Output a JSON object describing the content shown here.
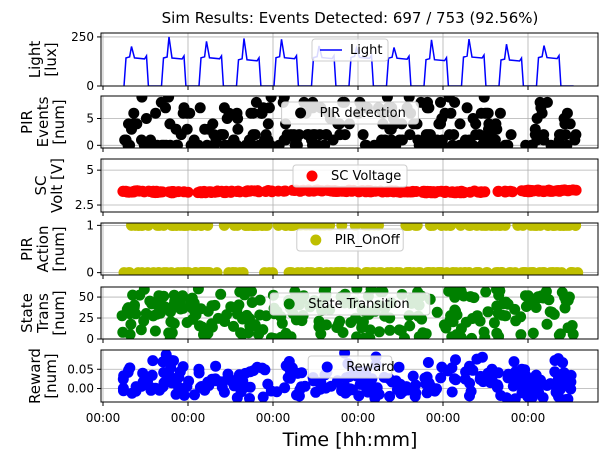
{
  "title": "Sim Results: Events Detected: 697 / 753 (92.56%)",
  "xlabel": "Time [hh:mm]",
  "x_tick_labels": [
    "00:00",
    "00:00",
    "00:00",
    "00:00",
    "00:00",
    "00:00"
  ],
  "chart_data": [
    {
      "type": "line",
      "ylabel": [
        "Light",
        "[lux]"
      ],
      "ylim": [
        0,
        270
      ],
      "yticks": [
        0,
        250
      ],
      "grid": true,
      "legend": {
        "position": "top-center",
        "label": "Light"
      },
      "color": "#0000ff",
      "marker": "none",
      "days": 12,
      "description_values": {
        "night": 0,
        "day_plateau": [
          130,
          150
        ],
        "daily_peak": [
          180,
          250
        ]
      }
    },
    {
      "type": "scatter",
      "ylabel": [
        "PIR",
        "Events",
        "[num]"
      ],
      "ylim": [
        -0.5,
        9.2
      ],
      "yticks": [
        0,
        5
      ],
      "grid": true,
      "legend": {
        "position": "top-center",
        "label": "PIR detection"
      },
      "color": "#000000",
      "value_range": [
        0,
        9
      ]
    },
    {
      "type": "scatter",
      "ylabel": [
        "SC",
        "Volt [V]"
      ],
      "ylim": [
        2.0,
        5.8
      ],
      "yticks": [
        2.5,
        5.0
      ],
      "grid": true,
      "legend": {
        "position": "top-center",
        "label": "SC Voltage"
      },
      "color": "#ff0000",
      "value_range": [
        3.3,
        3.6
      ]
    },
    {
      "type": "scatter",
      "ylabel": [
        "PIR",
        "Action",
        "[num]"
      ],
      "ylim": [
        -0.05,
        1.05
      ],
      "yticks": [
        0,
        1
      ],
      "grid": true,
      "legend": {
        "position": "top-center",
        "label": "PIR_OnOff"
      },
      "color": "#bfbf00",
      "values": [
        0,
        1
      ]
    },
    {
      "type": "scatter",
      "ylabel": [
        "State",
        "Trans",
        "[num]"
      ],
      "ylim": [
        0,
        62
      ],
      "yticks": [
        0,
        25,
        50
      ],
      "grid": true,
      "legend": {
        "position": "top-center",
        "label": "State Transition"
      },
      "color": "#008000",
      "value_range": [
        0,
        60
      ]
    },
    {
      "type": "scatter",
      "ylabel": [
        "Reward",
        "[num]"
      ],
      "ylim": [
        -0.035,
        0.1
      ],
      "yticks": [
        0.0,
        0.05
      ],
      "ytick_labels": [
        "0.00",
        "0.05"
      ],
      "grid": true,
      "legend": {
        "position": "top-center",
        "label": "Reward"
      },
      "color": "#0000ff",
      "value_range": [
        -0.03,
        0.09
      ]
    }
  ]
}
